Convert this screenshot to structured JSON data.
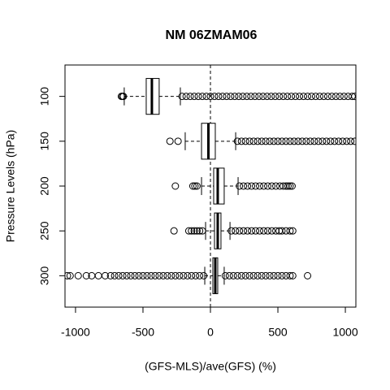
{
  "chart_data": {
    "type": "boxplot",
    "title": "NM 06ZMAM06",
    "x_label": "(GFS-MLS)/ave(GFS) (%)",
    "y_label": "Pressure Levels (hPa)",
    "categories": [
      "100",
      "150",
      "200",
      "250",
      "300"
    ],
    "xlim": [
      -1078,
      1078
    ],
    "xticks": [
      -1000,
      -500,
      0,
      500,
      1000
    ],
    "ref_line": 0,
    "boxes": [
      {
        "whisker_low": -639,
        "q1": -476,
        "median": -434,
        "q3": -380,
        "whisker_high": -223,
        "outliers": [
          -660,
          -652,
          -645,
          -210,
          -180,
          -150,
          -120,
          -90,
          -60,
          -30,
          0,
          30,
          60,
          90,
          120,
          150,
          180,
          210,
          240,
          270,
          300,
          330,
          360,
          390,
          420,
          450,
          480,
          510,
          540,
          570,
          600,
          630,
          660,
          690,
          720,
          750,
          780,
          810,
          840,
          870,
          900,
          930,
          960,
          990,
          1020,
          1050,
          1070
        ]
      },
      {
        "whisker_low": -187,
        "q1": -66,
        "median": -15,
        "q3": 36,
        "whisker_high": 187,
        "outliers": [
          -300,
          -240,
          200,
          230,
          260,
          290,
          320,
          350,
          380,
          410,
          440,
          470,
          500,
          530,
          560,
          590,
          620,
          650,
          680,
          710,
          740,
          770,
          800,
          830,
          860,
          890,
          920,
          950,
          980,
          1010,
          1040,
          1070
        ]
      },
      {
        "whisker_low": -66,
        "q1": 24,
        "median": 54,
        "q3": 102,
        "whisker_high": 205,
        "outliers": [
          -260,
          -130,
          -115,
          -100,
          215,
          245,
          275,
          305,
          335,
          365,
          395,
          425,
          455,
          485,
          515,
          540,
          560,
          575,
          590,
          605
        ]
      },
      {
        "whisker_low": -36,
        "q1": 30,
        "median": 54,
        "q3": 78,
        "whisker_high": 145,
        "outliers": [
          -270,
          -160,
          -140,
          -120,
          -100,
          -80,
          -60,
          155,
          185,
          215,
          245,
          275,
          305,
          335,
          365,
          395,
          425,
          455,
          485,
          510,
          530,
          560,
          590,
          610
        ]
      },
      {
        "whisker_low": -42,
        "q1": 18,
        "median": 36,
        "q3": 54,
        "whisker_high": 102,
        "outliers": [
          -1060,
          -1040,
          -980,
          -920,
          -880,
          -830,
          -780,
          -740,
          -710,
          -680,
          -650,
          -620,
          -590,
          -560,
          -530,
          -500,
          -470,
          -440,
          -410,
          -380,
          -350,
          -320,
          -290,
          -260,
          -230,
          -200,
          -170,
          -140,
          -110,
          -80,
          -50,
          110,
          140,
          170,
          200,
          230,
          260,
          290,
          320,
          350,
          380,
          410,
          440,
          470,
          500,
          530,
          560,
          590,
          610,
          720
        ]
      }
    ]
  }
}
